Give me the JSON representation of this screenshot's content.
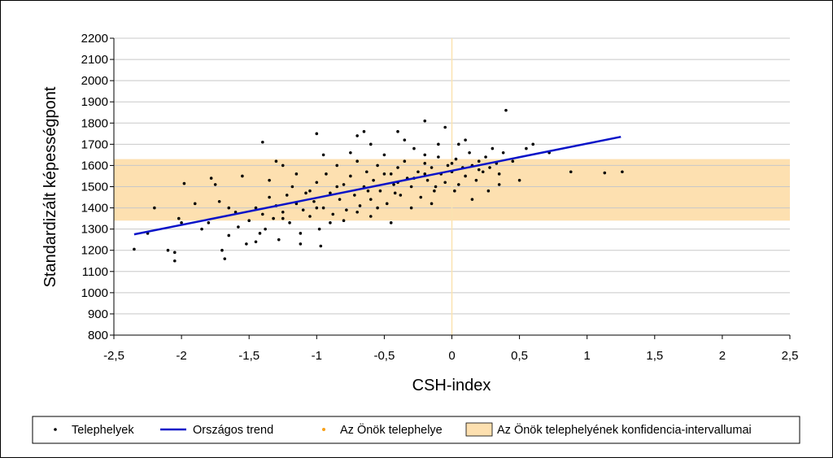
{
  "chart_data": {
    "type": "scatter",
    "x_label": "CSH-index",
    "y_label": "Standardizált képességpont",
    "xlim": [
      -2.5,
      2.5
    ],
    "ylim": [
      800,
      2200
    ],
    "xticks": [
      {
        "value": -2.5,
        "label": "-2,5"
      },
      -2,
      {
        "value": -1.5,
        "label": "-1,5"
      },
      -1,
      {
        "value": -0.5,
        "label": "-0,5"
      },
      0,
      {
        "value": 0.5,
        "label": "0,5"
      },
      1,
      {
        "value": 1.5,
        "label": "1,5"
      },
      2,
      {
        "value": 2.5,
        "label": "2,5"
      }
    ],
    "yticks": [
      800,
      900,
      1000,
      1100,
      1200,
      1300,
      1400,
      1500,
      1600,
      1700,
      1800,
      1900,
      2000,
      2100,
      2200
    ],
    "grid": true,
    "vline_x": 0,
    "vline_color": "#fbe3b0",
    "series": [
      {
        "name": "Telephelyek",
        "kind": "scatter",
        "color": "#000000",
        "x": [
          -2.35,
          -2.2,
          -2.25,
          -2.1,
          -2.05,
          -2.05,
          -2.0,
          -2.02,
          -1.98,
          -1.9,
          -1.78,
          -1.75,
          -1.7,
          -1.68,
          -1.65,
          -1.55,
          -1.52,
          -1.4,
          -1.35,
          -1.3,
          -1.0,
          -0.7,
          -0.65,
          -0.4,
          -0.2,
          -0.05,
          0.4,
          0.55,
          0.72,
          0.88,
          1.13,
          1.26,
          0.05,
          0.6,
          -1.45,
          -1.4,
          -1.38,
          -1.35,
          -1.32,
          -1.3,
          -1.28,
          -1.25,
          -1.22,
          -1.2,
          -1.18,
          -1.15,
          -1.12,
          -1.1,
          -1.08,
          -1.05,
          -1.02,
          -1.0,
          -0.98,
          -0.95,
          -0.93,
          -0.9,
          -0.88,
          -0.85,
          -0.83,
          -0.8,
          -0.78,
          -0.75,
          -0.72,
          -0.7,
          -0.68,
          -0.65,
          -0.63,
          -0.6,
          -0.58,
          -0.55,
          -0.53,
          -0.5,
          -0.48,
          -0.45,
          -0.43,
          -0.4,
          -0.38,
          -0.35,
          -0.33,
          -0.3,
          -0.28,
          -0.25,
          -0.23,
          -0.2,
          -0.18,
          -0.15,
          -0.13,
          -0.1,
          -0.08,
          -0.05,
          -0.03,
          0.0,
          0.03,
          0.05,
          0.08,
          0.1,
          0.13,
          0.15,
          0.18,
          0.2,
          0.23,
          0.25,
          0.28,
          0.3,
          0.33,
          0.35,
          0.38,
          0.45,
          0.5,
          -1.5,
          -1.6,
          -1.65,
          -1.8,
          -1.85,
          -1.72,
          -1.58,
          -1.45,
          -1.42,
          -1.25,
          -1.12,
          -0.97,
          -0.9,
          -0.8,
          -0.6,
          -0.45,
          -0.3,
          -0.15,
          0.02,
          0.15,
          0.35,
          0.27,
          -0.7,
          -0.55,
          -1.15,
          -1.25,
          -0.95,
          -0.6,
          -0.35,
          -0.1,
          0.1,
          -0.2,
          -0.75,
          -0.5,
          -0.42,
          -0.28,
          -0.12,
          -0.62,
          -0.85,
          -1.05,
          -1.0,
          -0.4,
          -0.2,
          0.0,
          0.2
        ],
        "values": [
          1205,
          1400,
          1280,
          1200,
          1150,
          1190,
          1330,
          1350,
          1515,
          1420,
          1540,
          1510,
          1200,
          1160,
          1270,
          1550,
          1230,
          1710,
          1530,
          1620,
          1750,
          1740,
          1760,
          1760,
          1810,
          1780,
          1860,
          1680,
          1660,
          1570,
          1565,
          1570,
          1700,
          1700,
          1400,
          1370,
          1300,
          1450,
          1350,
          1410,
          1250,
          1380,
          1460,
          1330,
          1500,
          1420,
          1280,
          1390,
          1470,
          1360,
          1430,
          1520,
          1300,
          1400,
          1560,
          1470,
          1370,
          1600,
          1440,
          1510,
          1390,
          1550,
          1460,
          1620,
          1410,
          1500,
          1570,
          1440,
          1530,
          1600,
          1480,
          1650,
          1420,
          1560,
          1510,
          1590,
          1460,
          1620,
          1540,
          1500,
          1680,
          1570,
          1450,
          1610,
          1530,
          1590,
          1480,
          1640,
          1560,
          1520,
          1600,
          1570,
          1630,
          1510,
          1590,
          1550,
          1660,
          1600,
          1530,
          1620,
          1570,
          1640,
          1590,
          1680,
          1610,
          1560,
          1660,
          1620,
          1530,
          1340,
          1380,
          1400,
          1330,
          1300,
          1430,
          1310,
          1240,
          1280,
          1350,
          1230,
          1220,
          1330,
          1340,
          1360,
          1330,
          1400,
          1420,
          1480,
          1440,
          1510,
          1480,
          1380,
          1400,
          1560,
          1600,
          1650,
          1700,
          1720,
          1700,
          1720,
          1650,
          1660,
          1560,
          1470,
          1540,
          1500,
          1480,
          1500,
          1480,
          1400,
          1520,
          1560,
          1610,
          1580
        ]
      },
      {
        "name": "Országos trend",
        "kind": "line",
        "color": "#0a14c8",
        "x": [
          -2.35,
          1.25
        ],
        "values": [
          1275,
          1735
        ]
      },
      {
        "name": "Az Önök telephelye",
        "kind": "point",
        "color": "#f7a11a",
        "x": [],
        "values": []
      },
      {
        "name": "Az Önök telephelyének konfidencia-intervallumai",
        "kind": "band",
        "color": "#fde0b0",
        "values": [
          1340,
          1630
        ]
      }
    ]
  }
}
